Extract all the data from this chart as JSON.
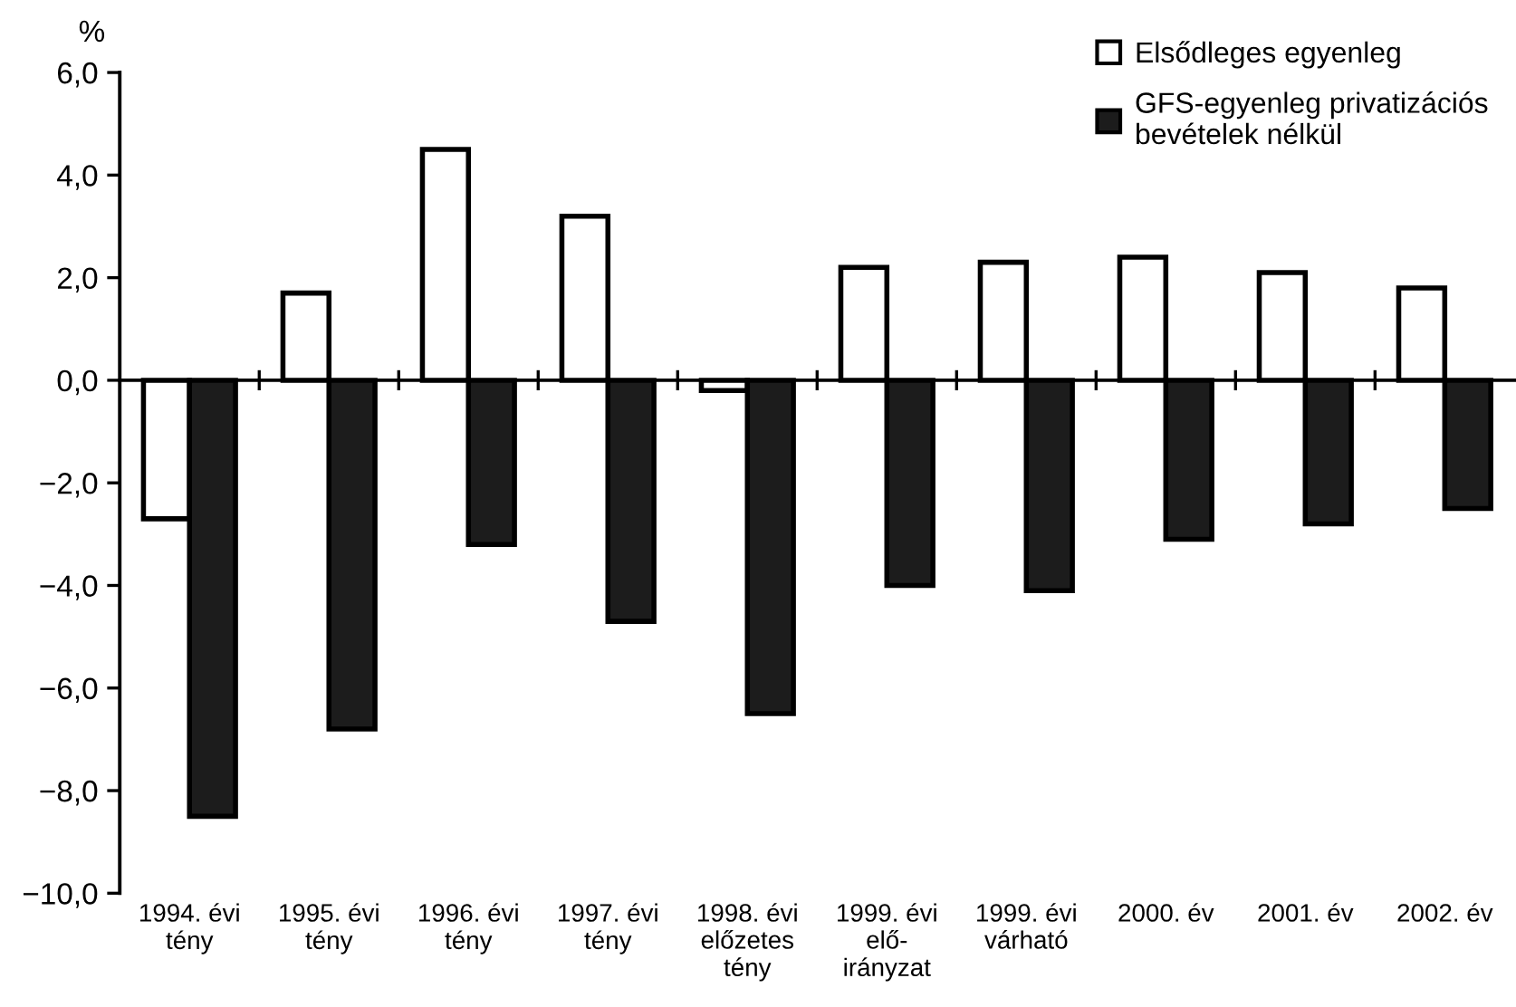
{
  "chart_data": {
    "type": "bar",
    "ylabel": "%",
    "categories": [
      "1994. évi\ntény",
      "1995. évi\ntény",
      "1996. évi\ntény",
      "1997. évi\ntény",
      "1998. évi\nelőzetes\ntény",
      "1999. évi\nelő-\nirányzat",
      "1999. évi\nvárható",
      "2000. év",
      "2001. év",
      "2002. év"
    ],
    "series": [
      {
        "name": "Elsődleges egyenleg",
        "color": "#ffffff",
        "values": [
          -2.7,
          1.7,
          4.5,
          3.2,
          -0.2,
          2.2,
          2.3,
          2.4,
          2.1,
          1.8
        ]
      },
      {
        "name": "GFS-egyenleg privatizációs\nbevételek nélkül",
        "color": "#1c1c1c",
        "values": [
          -8.5,
          -6.8,
          -3.2,
          -4.7,
          -6.5,
          -4.0,
          -4.1,
          -3.1,
          -2.8,
          -2.5
        ]
      }
    ],
    "ylim": [
      -10,
      6
    ],
    "yticks": [
      {
        "value": -10,
        "label": "−10,0"
      },
      {
        "value": -8,
        "label": "−8,0"
      },
      {
        "value": -6,
        "label": "−6,0"
      },
      {
        "value": -4,
        "label": "−4,0"
      },
      {
        "value": -2,
        "label": "−2,0"
      },
      {
        "value": 0,
        "label": "0,0"
      },
      {
        "value": 2,
        "label": "2,0"
      },
      {
        "value": 4,
        "label": "4,0"
      },
      {
        "value": 6,
        "label": "6,0"
      }
    ],
    "legend": "top right"
  }
}
